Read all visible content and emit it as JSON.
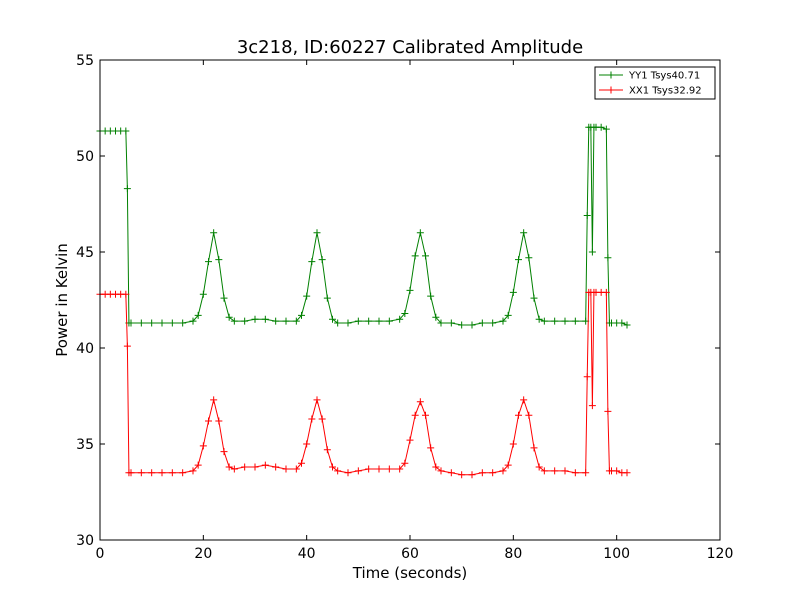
{
  "chart_data": {
    "type": "line",
    "title": "3c218, ID:60227 Calibrated Amplitude",
    "xlabel": "Time (seconds)",
    "ylabel": "Power in Kelvin",
    "xlim": [
      0,
      120
    ],
    "ylim": [
      30,
      55
    ],
    "xticks": [
      0,
      20,
      40,
      60,
      80,
      100,
      120
    ],
    "yticks": [
      30,
      35,
      40,
      45,
      50,
      55
    ],
    "grid": false,
    "legend_position": "top-right",
    "marker": "plus",
    "series": [
      {
        "name": "YY1 Tsys40.71",
        "color": "#008000",
        "x": [
          0,
          1,
          2,
          3,
          4,
          5,
          5.3,
          5.6,
          6,
          8,
          10,
          12,
          14,
          16,
          18,
          19,
          20,
          21,
          22,
          23,
          24,
          25,
          26,
          28,
          30,
          32,
          34,
          36,
          38,
          39,
          40,
          41,
          42,
          43,
          44,
          45,
          46,
          48,
          50,
          52,
          54,
          56,
          58,
          59,
          60,
          61,
          62,
          63,
          64,
          65,
          66,
          68,
          70,
          72,
          74,
          76,
          78,
          79,
          80,
          81,
          82,
          83,
          84,
          85,
          86,
          88,
          90,
          92,
          94,
          94.3,
          94.6,
          95,
          95.3,
          95.6,
          96,
          97,
          98,
          98.3,
          98.6,
          99,
          100,
          101,
          102
        ],
        "y": [
          51.3,
          51.3,
          51.3,
          51.3,
          51.3,
          51.3,
          48.3,
          41.3,
          41.3,
          41.3,
          41.3,
          41.3,
          41.3,
          41.3,
          41.4,
          41.7,
          42.8,
          44.5,
          46.0,
          44.6,
          42.6,
          41.6,
          41.4,
          41.4,
          41.5,
          41.5,
          41.4,
          41.4,
          41.4,
          41.7,
          42.7,
          44.5,
          46.0,
          44.6,
          42.6,
          41.5,
          41.3,
          41.3,
          41.4,
          41.4,
          41.4,
          41.4,
          41.5,
          41.8,
          43.0,
          44.8,
          46.0,
          44.8,
          42.7,
          41.6,
          41.3,
          41.3,
          41.2,
          41.2,
          41.3,
          41.3,
          41.4,
          41.7,
          42.9,
          44.6,
          46.0,
          44.7,
          42.6,
          41.5,
          41.4,
          41.4,
          41.4,
          41.4,
          41.4,
          46.9,
          51.5,
          51.5,
          45.0,
          51.5,
          51.5,
          51.5,
          51.4,
          44.7,
          41.3,
          41.3,
          41.3,
          41.3,
          41.2
        ]
      },
      {
        "name": "XX1 Tsys32.92",
        "color": "#ff0000",
        "x": [
          0,
          1,
          2,
          3,
          4,
          5,
          5.3,
          5.6,
          6,
          8,
          10,
          12,
          14,
          16,
          18,
          19,
          20,
          21,
          22,
          23,
          24,
          25,
          26,
          28,
          30,
          32,
          34,
          36,
          38,
          39,
          40,
          41,
          42,
          43,
          44,
          45,
          46,
          48,
          50,
          52,
          54,
          56,
          58,
          59,
          60,
          61,
          62,
          63,
          64,
          65,
          66,
          68,
          70,
          72,
          74,
          76,
          78,
          79,
          80,
          81,
          82,
          83,
          84,
          85,
          86,
          88,
          90,
          92,
          94,
          94.3,
          94.6,
          95,
          95.3,
          95.6,
          96,
          97,
          98,
          98.3,
          98.6,
          99,
          100,
          101,
          102
        ],
        "y": [
          42.8,
          42.8,
          42.8,
          42.8,
          42.8,
          42.8,
          40.1,
          33.5,
          33.5,
          33.5,
          33.5,
          33.5,
          33.5,
          33.5,
          33.6,
          33.9,
          34.9,
          36.2,
          37.3,
          36.2,
          34.6,
          33.8,
          33.7,
          33.8,
          33.8,
          33.9,
          33.8,
          33.7,
          33.7,
          34.0,
          35.0,
          36.3,
          37.3,
          36.3,
          34.7,
          33.8,
          33.6,
          33.5,
          33.6,
          33.7,
          33.7,
          33.7,
          33.7,
          34.0,
          35.2,
          36.5,
          37.2,
          36.5,
          34.8,
          33.8,
          33.6,
          33.5,
          33.4,
          33.4,
          33.5,
          33.5,
          33.6,
          33.9,
          35.0,
          36.5,
          37.3,
          36.5,
          34.8,
          33.8,
          33.6,
          33.6,
          33.6,
          33.5,
          33.5,
          38.5,
          42.9,
          42.9,
          37.0,
          42.9,
          42.9,
          42.9,
          42.9,
          36.7,
          33.6,
          33.6,
          33.6,
          33.5,
          33.5
        ]
      }
    ]
  }
}
